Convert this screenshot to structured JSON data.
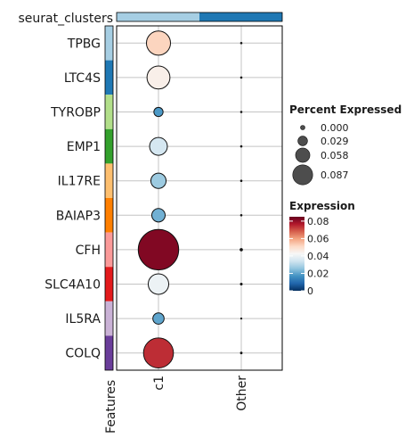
{
  "chart_data": {
    "type": "scatter",
    "subtype": "dot-plot",
    "annotation_label": "seurat_clusters",
    "annotation_colors": [
      "#a6cee3",
      "#1f78b4"
    ],
    "genes": [
      "TPBG",
      "LTC4S",
      "TYROBP",
      "EMP1",
      "IL17RE",
      "BAIAP3",
      "CFH",
      "SLC4A10",
      "IL5RA",
      "COLQ"
    ],
    "gene_colors": [
      "#a6cee3",
      "#1f78b4",
      "#b2df8a",
      "#33a02c",
      "#fdbf6f",
      "#ff7f00",
      "#fb9a99",
      "#e31a1c",
      "#cab2d6",
      "#6a3d9a"
    ],
    "groups": [
      "c1",
      "Other"
    ],
    "features_label": "Features",
    "percent_expressed": {
      "c1": [
        0.055,
        0.05,
        0.008,
        0.03,
        0.022,
        0.017,
        0.155,
        0.04,
        0.012,
        0.085
      ],
      "Other": [
        0.0005,
        0.0005,
        0.0005,
        0.0005,
        0.0005,
        0.0005,
        0.001,
        0.0007,
        0.0004,
        0.0006
      ]
    },
    "expression": {
      "c1": [
        0.052,
        0.045,
        0.018,
        0.035,
        0.027,
        0.022,
        0.082,
        0.04,
        0.02,
        0.074
      ],
      "Other": [
        0.0,
        0.0,
        0.0,
        0.0,
        0.0,
        0.0,
        0.0,
        0.0,
        0.0,
        0.0
      ]
    },
    "size_legend": {
      "title": "Percent Expressed",
      "values": [
        0.0,
        0.029,
        0.058,
        0.087
      ],
      "labels": [
        "0.000",
        "0.029",
        "0.058",
        "0.087"
      ]
    },
    "color_legend": {
      "title": "Expression",
      "range": [
        0,
        0.085
      ],
      "ticks": [
        0,
        0.02,
        0.04,
        0.06,
        0.08
      ],
      "tick_labels": [
        "0",
        "0.02",
        "0.04",
        "0.06",
        "0.08"
      ],
      "colors": [
        "#053061",
        "#2166ac",
        "#4393c3",
        "#92c5de",
        "#d1e5f0",
        "#f7f7f7",
        "#fddbc7",
        "#f4a582",
        "#d6604d",
        "#b2182b",
        "#67001f"
      ]
    },
    "grid": true
  }
}
